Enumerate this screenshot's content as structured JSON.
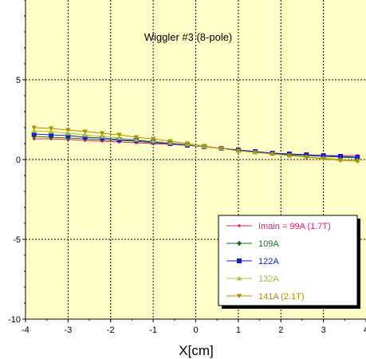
{
  "chart_data": {
    "type": "line",
    "title": "Wiggler #3 (8-pole)",
    "xlabel": "X[cm]",
    "ylabel": "",
    "xlim": [
      -4,
      4
    ],
    "ylim": [
      -10,
      10
    ],
    "xticks": [
      -4,
      -3,
      -2,
      -1,
      0,
      1,
      2,
      3,
      4
    ],
    "yticks": [
      -10,
      -5,
      0,
      5
    ],
    "grid": true,
    "legend_position": "bottom-right",
    "plot_background": "#ffffc8",
    "x": [
      -3.8,
      -3.4,
      -3.0,
      -2.6,
      -2.2,
      -1.8,
      -1.4,
      -1.0,
      -0.6,
      -0.2,
      0.2,
      0.6,
      1.0,
      1.4,
      1.8,
      2.2,
      2.6,
      3.0,
      3.4,
      3.8
    ],
    "series": [
      {
        "name": "Imain = 99A (1.7T)",
        "color": "#e0206e",
        "marker": "dot",
        "values": [
          1.3,
          1.3,
          1.25,
          1.2,
          1.15,
          1.1,
          1.05,
          1.0,
          0.95,
          0.9,
          0.8,
          0.7,
          0.6,
          0.5,
          0.4,
          0.35,
          0.3,
          0.25,
          0.25,
          0.25
        ]
      },
      {
        "name": "109A",
        "color": "#1e6e1e",
        "marker": "diamond",
        "values": [
          1.45,
          1.4,
          1.35,
          1.3,
          1.25,
          1.2,
          1.15,
          1.05,
          1.0,
          0.9,
          0.8,
          0.7,
          0.6,
          0.5,
          0.4,
          0.3,
          0.25,
          0.2,
          0.15,
          0.1
        ]
      },
      {
        "name": "122A",
        "color": "#1a1ad0",
        "marker": "square",
        "values": [
          1.6,
          1.55,
          1.5,
          1.4,
          1.35,
          1.25,
          1.2,
          1.1,
          1.0,
          0.9,
          0.8,
          0.7,
          0.6,
          0.5,
          0.4,
          0.35,
          0.3,
          0.25,
          0.2,
          0.15
        ]
      },
      {
        "name": "132A",
        "color": "#a8c040",
        "marker": "triangle-up",
        "values": [
          1.8,
          1.75,
          1.65,
          1.55,
          1.45,
          1.35,
          1.25,
          1.15,
          1.05,
          0.95,
          0.8,
          0.7,
          0.55,
          0.45,
          0.35,
          0.25,
          0.15,
          0.1,
          0.0,
          -0.05
        ]
      },
      {
        "name": "141A (2.1T)",
        "color": "#b09000",
        "marker": "triangle-down",
        "values": [
          2.0,
          1.95,
          1.85,
          1.75,
          1.65,
          1.55,
          1.4,
          1.3,
          1.15,
          1.0,
          0.85,
          0.7,
          0.55,
          0.45,
          0.35,
          0.25,
          0.15,
          0.05,
          -0.05,
          -0.1
        ]
      }
    ]
  }
}
